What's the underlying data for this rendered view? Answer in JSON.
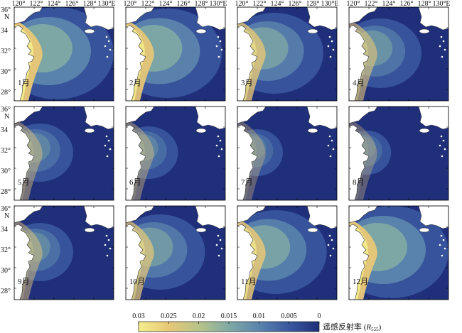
{
  "figure": {
    "lon_ticks": [
      "120°",
      "122°",
      "124°",
      "126°",
      "128°",
      "130°E"
    ],
    "lat_ticks": [
      "36°",
      "34",
      "32°",
      "30°",
      "28°"
    ],
    "north_label": "N",
    "panels": [
      {
        "month": "1月",
        "intensity": 0.95,
        "extent": 1.0
      },
      {
        "month": "2月",
        "intensity": 0.9,
        "extent": 0.95
      },
      {
        "month": "3月",
        "intensity": 0.7,
        "extent": 0.8
      },
      {
        "month": "4月",
        "intensity": 0.45,
        "extent": 0.6
      },
      {
        "month": "5月",
        "intensity": 0.25,
        "extent": 0.4
      },
      {
        "month": "6月",
        "intensity": 0.2,
        "extent": 0.3
      },
      {
        "month": "7月",
        "intensity": 0.1,
        "extent": 0.2
      },
      {
        "month": "8月",
        "intensity": 0.08,
        "extent": 0.15
      },
      {
        "month": "9月",
        "intensity": 0.3,
        "extent": 0.4
      },
      {
        "month": "10月",
        "intensity": 0.6,
        "extent": 0.7
      },
      {
        "month": "11月",
        "intensity": 0.8,
        "extent": 0.85
      },
      {
        "month": "12月",
        "intensity": 0.95,
        "extent": 1.0
      }
    ]
  },
  "colorbar": {
    "tick_labels": [
      "0.03",
      "0.025",
      "0.02",
      "0.015",
      "0.01",
      "0.005",
      "0"
    ],
    "title_main": "遥感反射率 (",
    "title_var": "R",
    "title_sub": "555",
    "title_end": ")",
    "colors": [
      "#f4ee8c",
      "#e8c777",
      "#b7c489",
      "#7fa9a4",
      "#5b84ad",
      "#39589f",
      "#1f2f7a"
    ]
  }
}
